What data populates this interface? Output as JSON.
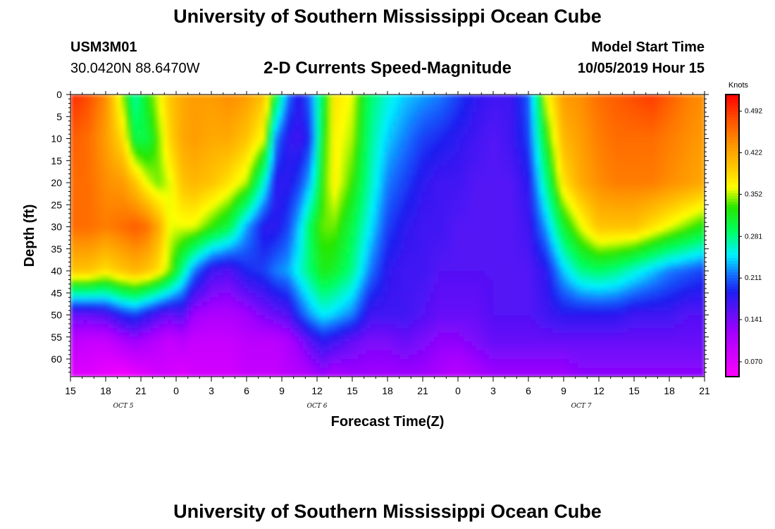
{
  "chart_data": {
    "type": "heatmap",
    "title": "University of Southern Mississippi Ocean Cube",
    "footer_title": "University of Southern Mississippi Ocean Cube",
    "station_id": "USM3M01",
    "location": "30.0420N 88.6470W",
    "subtitle": "2-D Currents Speed-Magnitude",
    "model_start_label": "Model Start Time",
    "model_start_value": "10/05/2019 Hour 15",
    "xlabel": "Forecast Time(Z)",
    "ylabel": "Depth (ft)",
    "x_tick_labels": [
      "15",
      "18",
      "21",
      "0",
      "3",
      "6",
      "9",
      "12",
      "15",
      "18",
      "21",
      "0",
      "3",
      "6",
      "9",
      "12",
      "15",
      "18",
      "21"
    ],
    "x_hours": [
      0,
      54
    ],
    "date_labels": [
      {
        "text": "OCT 5",
        "hour": 4.5
      },
      {
        "text": "OCT 6",
        "hour": 21
      },
      {
        "text": "OCT 7",
        "hour": 43.5
      }
    ],
    "y_ticks": [
      0,
      5,
      10,
      15,
      20,
      25,
      30,
      35,
      40,
      45,
      50,
      55,
      60
    ],
    "ylim": [
      0,
      64
    ],
    "colorbar": {
      "label": "Knots",
      "tick_values": [
        0.07,
        0.141,
        0.211,
        0.281,
        0.352,
        0.422,
        0.492
      ],
      "tick_labels": [
        "0.070",
        "0.141",
        "0.211",
        "0.281",
        "0.352",
        "0.422",
        "0.492"
      ],
      "range": [
        0.045,
        0.52
      ]
    },
    "grid_columns": {
      "hours": [
        0,
        1.5,
        3,
        4.5,
        5.5,
        6.5,
        7.5,
        8.5,
        9.5,
        10.5,
        12,
        13.5,
        15,
        16.5,
        17.5,
        18.5,
        19.5,
        20.5,
        21.5,
        22.5,
        24,
        25.5,
        27,
        28.5,
        30,
        31.5,
        33,
        34.5,
        36,
        37.5,
        39,
        40.5,
        42,
        43.5,
        45,
        46.5,
        48,
        49.5,
        51,
        52.5,
        54
      ],
      "depths_ft": [
        0,
        10,
        20,
        30,
        40,
        50,
        56,
        64
      ],
      "speed_knots": [
        [
          0.5,
          0.47,
          0.46,
          0.46,
          0.4,
          0.15,
          0.1,
          0.07
        ],
        [
          0.48,
          0.46,
          0.46,
          0.46,
          0.4,
          0.15,
          0.09,
          0.07
        ],
        [
          0.44,
          0.43,
          0.44,
          0.45,
          0.38,
          0.16,
          0.09,
          0.06
        ],
        [
          0.34,
          0.38,
          0.43,
          0.46,
          0.4,
          0.19,
          0.11,
          0.05
        ],
        [
          0.27,
          0.3,
          0.4,
          0.47,
          0.41,
          0.2,
          0.12,
          0.06
        ],
        [
          0.32,
          0.3,
          0.36,
          0.46,
          0.4,
          0.18,
          0.11,
          0.07
        ],
        [
          0.36,
          0.34,
          0.34,
          0.42,
          0.38,
          0.16,
          0.1,
          0.08
        ],
        [
          0.4,
          0.39,
          0.36,
          0.36,
          0.34,
          0.15,
          0.09,
          0.08
        ],
        [
          0.42,
          0.42,
          0.4,
          0.36,
          0.28,
          0.16,
          0.1,
          0.07
        ],
        [
          0.43,
          0.43,
          0.41,
          0.36,
          0.22,
          0.12,
          0.09,
          0.08
        ],
        [
          0.43,
          0.42,
          0.4,
          0.33,
          0.17,
          0.11,
          0.09,
          0.08
        ],
        [
          0.44,
          0.42,
          0.38,
          0.3,
          0.16,
          0.11,
          0.09,
          0.08
        ],
        [
          0.43,
          0.4,
          0.35,
          0.23,
          0.19,
          0.12,
          0.1,
          0.09
        ],
        [
          0.4,
          0.36,
          0.26,
          0.18,
          0.2,
          0.14,
          0.1,
          0.09
        ],
        [
          0.31,
          0.22,
          0.18,
          0.18,
          0.22,
          0.15,
          0.1,
          0.09
        ],
        [
          0.22,
          0.18,
          0.18,
          0.2,
          0.23,
          0.16,
          0.11,
          0.1
        ],
        [
          0.18,
          0.17,
          0.2,
          0.24,
          0.26,
          0.2,
          0.13,
          0.1
        ],
        [
          0.22,
          0.2,
          0.24,
          0.3,
          0.29,
          0.23,
          0.16,
          0.11
        ],
        [
          0.3,
          0.32,
          0.33,
          0.34,
          0.32,
          0.25,
          0.18,
          0.12
        ],
        [
          0.38,
          0.37,
          0.37,
          0.34,
          0.31,
          0.24,
          0.17,
          0.11
        ],
        [
          0.36,
          0.35,
          0.33,
          0.3,
          0.28,
          0.22,
          0.15,
          0.12
        ],
        [
          0.29,
          0.28,
          0.27,
          0.25,
          0.22,
          0.17,
          0.14,
          0.12
        ],
        [
          0.26,
          0.24,
          0.22,
          0.2,
          0.18,
          0.17,
          0.14,
          0.12
        ],
        [
          0.24,
          0.22,
          0.2,
          0.18,
          0.17,
          0.17,
          0.15,
          0.12
        ],
        [
          0.23,
          0.2,
          0.18,
          0.17,
          0.17,
          0.16,
          0.14,
          0.12
        ],
        [
          0.22,
          0.19,
          0.17,
          0.17,
          0.16,
          0.15,
          0.13,
          0.11
        ],
        [
          0.2,
          0.18,
          0.17,
          0.16,
          0.16,
          0.15,
          0.13,
          0.1
        ],
        [
          0.18,
          0.17,
          0.16,
          0.16,
          0.16,
          0.15,
          0.14,
          0.11
        ],
        [
          0.17,
          0.16,
          0.16,
          0.16,
          0.16,
          0.16,
          0.15,
          0.12
        ],
        [
          0.17,
          0.17,
          0.16,
          0.16,
          0.16,
          0.16,
          0.15,
          0.12
        ],
        [
          0.21,
          0.2,
          0.18,
          0.17,
          0.16,
          0.16,
          0.15,
          0.12
        ],
        [
          0.36,
          0.32,
          0.28,
          0.23,
          0.18,
          0.17,
          0.15,
          0.12
        ],
        [
          0.43,
          0.41,
          0.38,
          0.31,
          0.24,
          0.18,
          0.15,
          0.12
        ],
        [
          0.44,
          0.43,
          0.42,
          0.36,
          0.28,
          0.18,
          0.15,
          0.13
        ],
        [
          0.46,
          0.45,
          0.44,
          0.4,
          0.29,
          0.18,
          0.15,
          0.13
        ],
        [
          0.47,
          0.46,
          0.45,
          0.4,
          0.28,
          0.18,
          0.15,
          0.13
        ],
        [
          0.48,
          0.46,
          0.45,
          0.4,
          0.26,
          0.17,
          0.15,
          0.13
        ],
        [
          0.49,
          0.46,
          0.45,
          0.38,
          0.24,
          0.17,
          0.15,
          0.13
        ],
        [
          0.47,
          0.45,
          0.44,
          0.36,
          0.22,
          0.17,
          0.15,
          0.13
        ],
        [
          0.45,
          0.44,
          0.43,
          0.34,
          0.21,
          0.16,
          0.15,
          0.13
        ],
        [
          0.44,
          0.43,
          0.42,
          0.32,
          0.2,
          0.16,
          0.15,
          0.13
        ]
      ]
    }
  }
}
